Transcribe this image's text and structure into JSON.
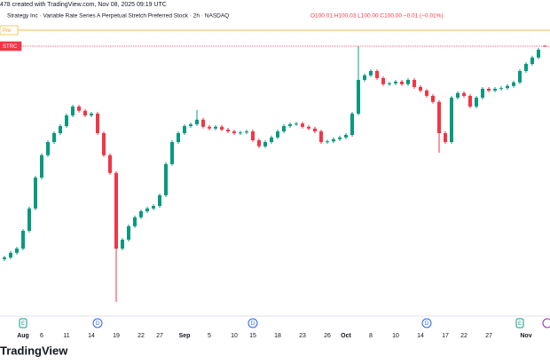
{
  "header": {
    "credit": "478 created with TradingView.com, Nov 08, 2025 09:19 UTC",
    "symbol": "Strategy Inc · Variable Rate Series A Perpetual Stretch Preferred Stock · 2h · NASDAQ",
    "ohlc": "O100.01 H100.03 L100.00 C100.00 −0.01 (−0.01%)",
    "logo": "TradingView"
  },
  "chart_data": {
    "type": "candlestick",
    "up_color": "#089981",
    "down_color": "#f23645",
    "ylim": [
      92.4,
      101.3
    ],
    "categories": [
      null,
      null,
      null,
      "Aug",
      null,
      null,
      "6",
      null,
      null,
      null,
      "11",
      null,
      null,
      null,
      "14",
      null,
      null,
      null,
      "19",
      null,
      null,
      null,
      "22",
      null,
      null,
      "27",
      null,
      null,
      null,
      "Sep",
      null,
      null,
      null,
      "5",
      null,
      null,
      null,
      "10",
      null,
      null,
      "15",
      null,
      null,
      null,
      "18",
      null,
      null,
      null,
      "23",
      null,
      null,
      null,
      "26",
      null,
      null,
      "Oct",
      null,
      null,
      null,
      "8",
      null,
      null,
      null,
      "10",
      null,
      null,
      null,
      "14",
      null,
      null,
      null,
      "17",
      null,
      null,
      "22",
      null,
      null,
      null,
      "27",
      null,
      null,
      null,
      null,
      null,
      "Nov",
      null,
      null,
      null
    ],
    "open": [
      94.0,
      94.05,
      94.18,
      94.3,
      94.8,
      95.43,
      96.3,
      96.93,
      97.3,
      97.55,
      97.75,
      98.05,
      98.3,
      98.18,
      98.05,
      98.1,
      97.55,
      96.93,
      96.43,
      94.3,
      94.55,
      94.93,
      95.18,
      95.35,
      95.43,
      95.5,
      95.8,
      96.68,
      97.3,
      97.55,
      97.75,
      97.8,
      97.93,
      97.73,
      97.68,
      97.73,
      97.65,
      97.6,
      97.55,
      97.57,
      97.6,
      97.35,
      97.18,
      97.3,
      97.43,
      97.6,
      97.75,
      97.8,
      97.82,
      97.73,
      97.68,
      97.6,
      97.3,
      97.32,
      97.38,
      97.43,
      97.5,
      98.1,
      99.05,
      99.18,
      99.3,
      99.1,
      98.93,
      98.95,
      99.0,
      98.93,
      99.05,
      98.85,
      98.75,
      98.6,
      98.43,
      97.55,
      97.3,
      98.55,
      98.68,
      98.6,
      98.3,
      98.55,
      98.8,
      98.75,
      98.8,
      98.82,
      98.88,
      98.98,
      99.3,
      99.5,
      99.68,
      100.01
    ],
    "high": [
      94.1,
      94.23,
      94.35,
      94.85,
      95.48,
      96.35,
      96.98,
      97.35,
      97.6,
      97.8,
      98.1,
      98.35,
      98.35,
      98.23,
      98.15,
      98.15,
      97.6,
      96.98,
      96.48,
      94.6,
      94.98,
      95.23,
      95.4,
      95.48,
      95.55,
      95.85,
      96.73,
      97.35,
      97.6,
      97.8,
      97.85,
      98.2,
      97.98,
      97.78,
      97.78,
      97.78,
      97.7,
      97.65,
      97.62,
      97.65,
      97.65,
      97.4,
      97.35,
      97.48,
      97.65,
      97.8,
      97.85,
      97.87,
      97.87,
      97.78,
      97.73,
      97.65,
      97.37,
      97.43,
      97.48,
      97.55,
      98.15,
      100.0,
      99.23,
      99.35,
      99.35,
      99.15,
      99.0,
      99.05,
      99.05,
      99.1,
      99.1,
      98.9,
      98.8,
      98.65,
      98.48,
      97.6,
      98.6,
      98.73,
      98.73,
      98.65,
      98.6,
      98.85,
      98.85,
      98.85,
      98.87,
      98.93,
      99.03,
      99.35,
      99.55,
      99.73,
      99.95,
      100.03
    ],
    "low": [
      93.95,
      94.0,
      94.13,
      94.25,
      94.75,
      95.38,
      96.25,
      96.88,
      97.25,
      97.5,
      97.7,
      98.0,
      98.13,
      98.0,
      98.0,
      97.5,
      96.88,
      96.38,
      92.8,
      94.25,
      94.5,
      94.88,
      95.13,
      95.3,
      95.38,
      95.45,
      95.75,
      96.63,
      97.25,
      97.5,
      97.7,
      97.75,
      97.68,
      97.63,
      97.63,
      97.6,
      97.55,
      97.5,
      97.5,
      97.52,
      97.3,
      97.13,
      97.13,
      97.25,
      97.38,
      97.55,
      97.7,
      97.75,
      97.68,
      97.63,
      97.55,
      97.25,
      97.25,
      97.27,
      97.33,
      97.38,
      97.45,
      98.05,
      99.0,
      99.13,
      99.05,
      98.88,
      98.88,
      98.9,
      98.88,
      98.88,
      98.8,
      98.7,
      98.55,
      98.38,
      97.0,
      97.25,
      97.25,
      98.5,
      98.55,
      98.25,
      98.25,
      98.5,
      98.7,
      98.7,
      98.75,
      98.77,
      98.83,
      98.93,
      99.25,
      99.45,
      99.63,
      100.0
    ],
    "close": [
      94.05,
      94.18,
      94.3,
      94.8,
      95.43,
      96.3,
      96.93,
      97.3,
      97.55,
      97.75,
      98.05,
      98.3,
      98.18,
      98.05,
      98.1,
      97.55,
      96.93,
      96.43,
      94.3,
      94.55,
      94.93,
      95.18,
      95.35,
      95.43,
      95.5,
      95.8,
      96.68,
      97.3,
      97.55,
      97.75,
      97.8,
      97.93,
      97.73,
      97.68,
      97.73,
      97.65,
      97.6,
      97.55,
      97.57,
      97.6,
      97.35,
      97.18,
      97.3,
      97.43,
      97.6,
      97.75,
      97.8,
      97.82,
      97.73,
      97.68,
      97.6,
      97.3,
      97.32,
      97.38,
      97.43,
      97.5,
      98.1,
      99.05,
      99.18,
      99.3,
      99.1,
      98.93,
      98.95,
      99.0,
      98.93,
      99.05,
      98.85,
      98.75,
      98.6,
      98.43,
      97.55,
      97.3,
      98.55,
      98.68,
      98.6,
      98.3,
      98.55,
      98.8,
      98.75,
      98.8,
      98.82,
      98.88,
      98.98,
      99.3,
      99.5,
      99.68,
      99.9,
      100.0
    ],
    "price_lines": [
      {
        "label": "Pre",
        "value": 100.45,
        "color": "#f7a600"
      },
      {
        "label": "STRC",
        "value": 100.0,
        "color": "#f23645"
      }
    ],
    "events": [
      {
        "label": "E",
        "category": 3,
        "color": "#089981"
      },
      {
        "label": "D",
        "category": 15,
        "color": "#2962ff"
      },
      {
        "label": "D",
        "category": 40,
        "color": "#2962ff"
      },
      {
        "label": "D",
        "category": 68,
        "color": "#2962ff"
      },
      {
        "label": "E",
        "category": 83,
        "color": "#089981"
      }
    ]
  }
}
